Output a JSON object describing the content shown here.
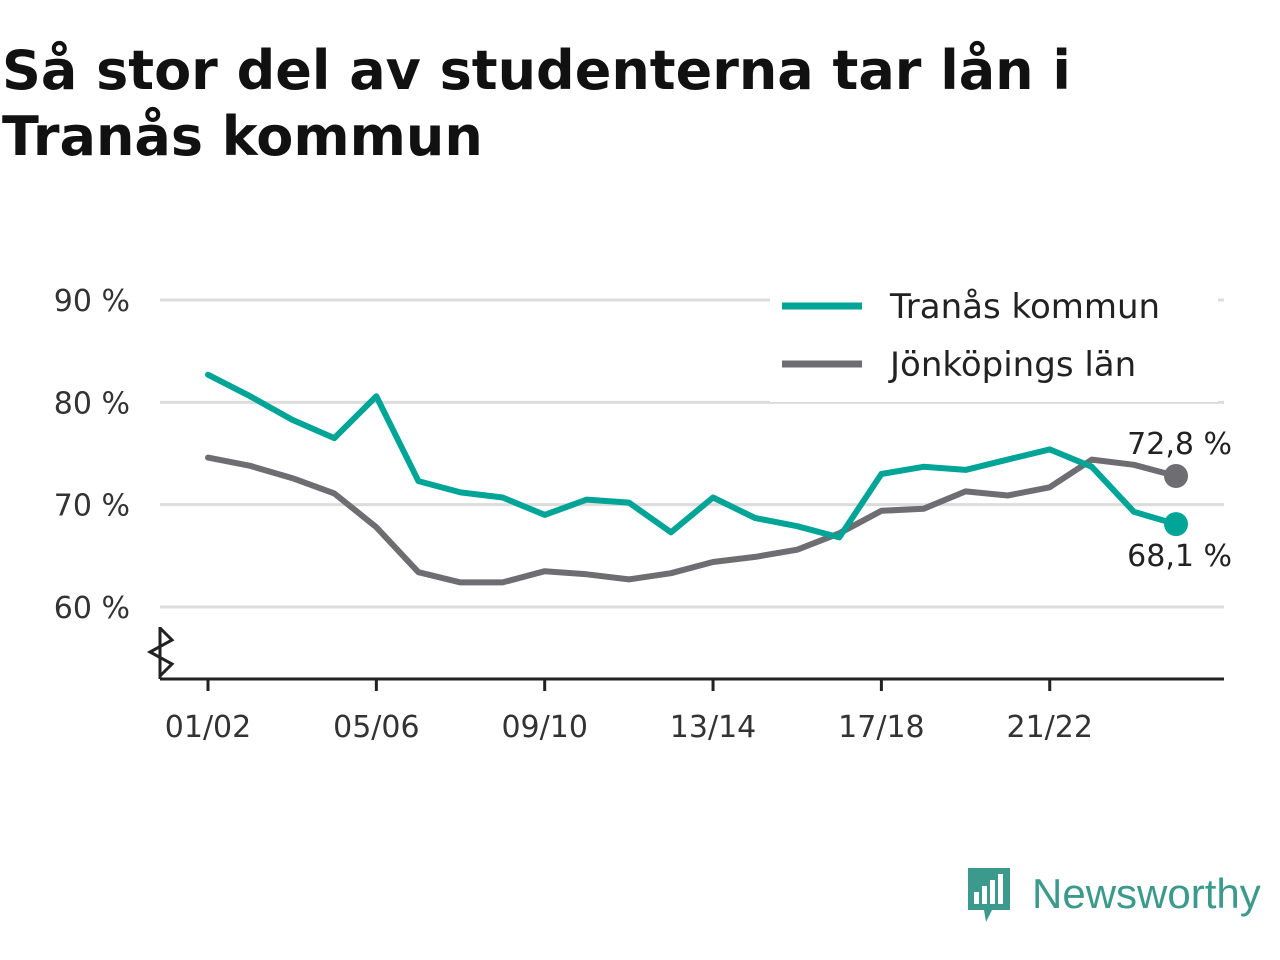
{
  "title": "Så stor del av studenterna tar lån i Tranås kommun",
  "brand": {
    "name": "Newsworthy",
    "icon": "newsworthy-logo-icon",
    "color": "#3b9a8c"
  },
  "chart_data": {
    "type": "line",
    "title": "Så stor del av studenterna tar lån i Tranås kommun",
    "xlabel": "",
    "ylabel": "",
    "ylim": [
      53,
      90
    ],
    "y_ticks": [
      60,
      70,
      80,
      90
    ],
    "y_tick_labels": [
      "60 %",
      "70 %",
      "80 %",
      "90 %"
    ],
    "y_axis_break": true,
    "grid": true,
    "legend_position": "top-right",
    "x": [
      "01/02",
      "02/03",
      "03/04",
      "04/05",
      "05/06",
      "06/07",
      "07/08",
      "08/09",
      "09/10",
      "10/11",
      "11/12",
      "12/13",
      "13/14",
      "14/15",
      "15/16",
      "16/17",
      "17/18",
      "18/19",
      "19/20",
      "20/21",
      "21/22",
      "22/23",
      "23/24",
      "24/25"
    ],
    "x_tick_labels": [
      "01/02",
      "05/06",
      "09/10",
      "13/14",
      "17/18",
      "21/22"
    ],
    "series": [
      {
        "name": "Tranås kommun",
        "color": "#00a597",
        "values": [
          82.7,
          80.6,
          78.3,
          76.5,
          80.6,
          72.3,
          71.2,
          70.7,
          69.0,
          70.5,
          70.2,
          67.3,
          70.7,
          68.7,
          67.9,
          66.8,
          73.0,
          73.7,
          73.4,
          74.4,
          75.4,
          73.7,
          69.3,
          68.1
        ],
        "end_label": "68,1 %"
      },
      {
        "name": "Jönköpings län",
        "color": "#6e6d72",
        "values": [
          74.6,
          73.8,
          72.6,
          71.1,
          67.8,
          63.4,
          62.4,
          62.4,
          63.5,
          63.2,
          62.7,
          63.3,
          64.4,
          64.9,
          65.6,
          67.2,
          69.4,
          69.6,
          71.3,
          70.9,
          71.7,
          74.4,
          73.9,
          72.8
        ],
        "end_label": "72,8 %"
      }
    ]
  }
}
